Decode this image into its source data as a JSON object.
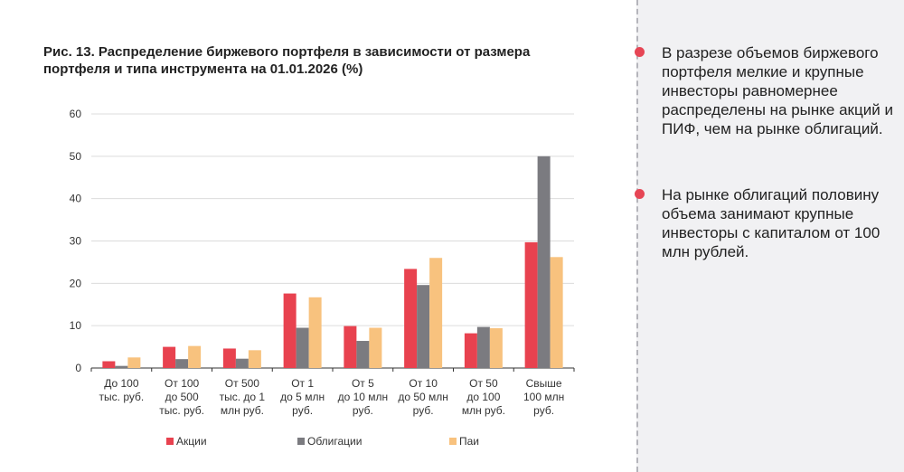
{
  "chart_data": {
    "type": "bar",
    "title": "Рис. 13. Распределение биржевого портфеля в зависимости от размера портфеля и типа инструмента на 01.01.2026 (%)",
    "categories": [
      "До 100\nтыс. руб.",
      "От 100\nдо 500\nтыс. руб.",
      "От 500\nтыс. до 1\nмлн руб.",
      "От 1\nдо 5 млн\nруб.",
      "От 5\nдо 10 млн\nруб.",
      "От 10\nдо 50 млн\nруб.",
      "От 50\nдо 100\nмлн руб.",
      "Свыше\n100 млн\nруб."
    ],
    "series": [
      {
        "name": "Акции",
        "color": "#e8424f",
        "values": [
          1.6,
          5.0,
          4.6,
          17.6,
          9.9,
          23.4,
          8.2,
          29.7
        ]
      },
      {
        "name": "Облигации",
        "color": "#7b7b80",
        "values": [
          0.5,
          2.1,
          2.2,
          9.5,
          6.4,
          19.6,
          9.7,
          50.0
        ]
      },
      {
        "name": "Паи",
        "color": "#f8c27e",
        "values": [
          2.5,
          5.2,
          4.2,
          16.7,
          9.5,
          26.0,
          9.4,
          26.2
        ]
      }
    ],
    "ylim": [
      0,
      60
    ],
    "yticks": [
      "0",
      "10",
      "20",
      "30",
      "40",
      "50",
      "60"
    ],
    "grid": true,
    "legend": "bottom"
  },
  "side": {
    "bullets": [
      "В разрезе объемов биржевого портфеля мелкие и крупные инвесторы равномернее распределены на рынке акций и ПИФ, чем на рынке облигаций.",
      "На рынке облигаций половину объема занимают крупные инвесторы с капиталом от 100 млн рублей."
    ]
  }
}
